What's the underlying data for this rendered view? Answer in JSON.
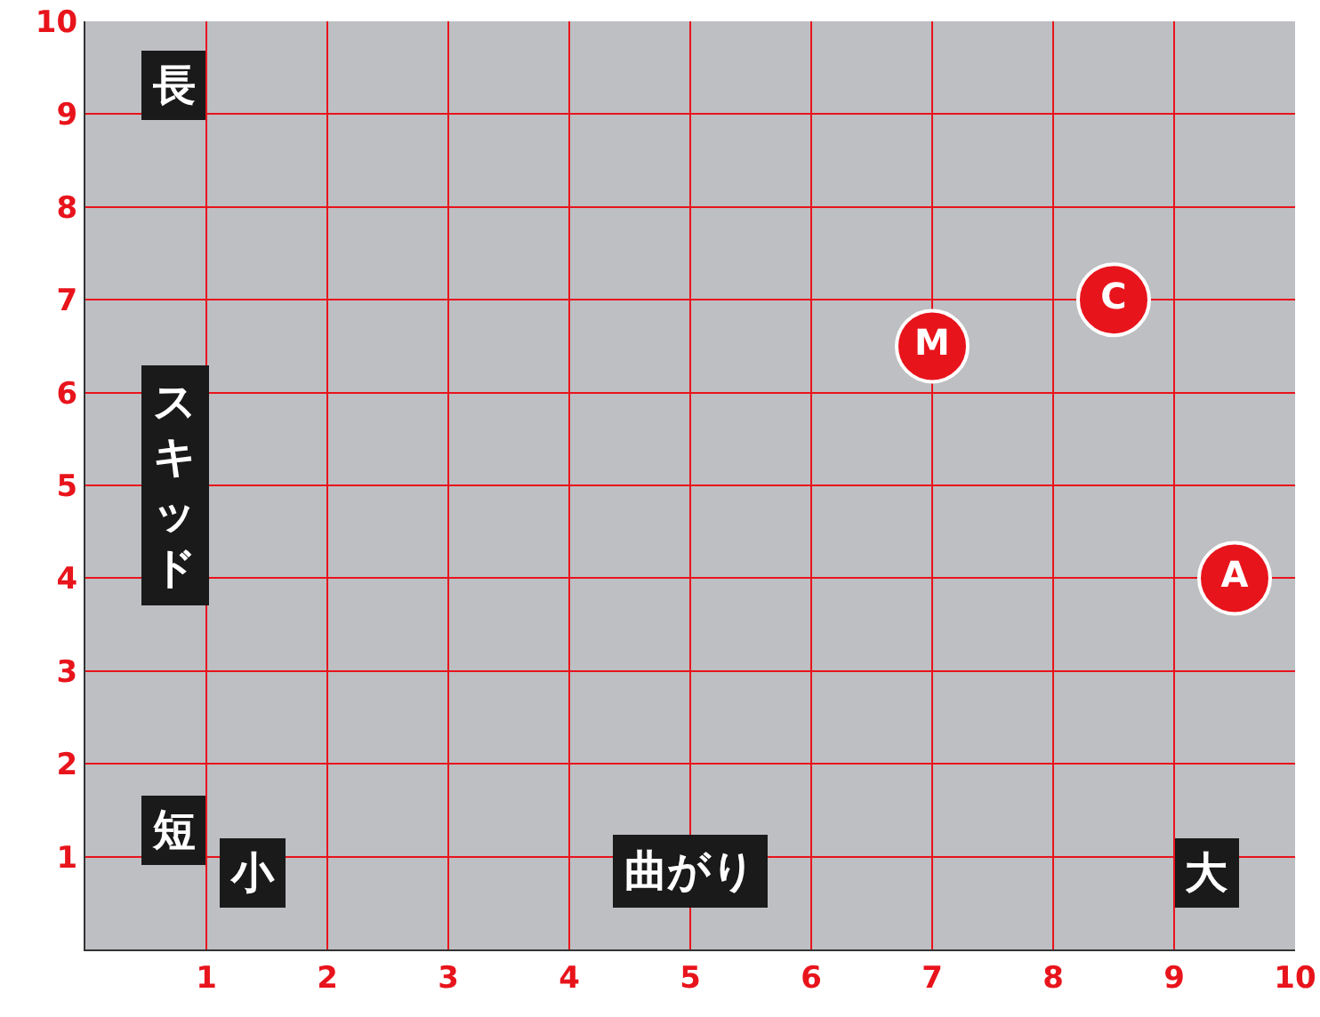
{
  "chart_data": {
    "type": "scatter",
    "xlabel": "曲がり",
    "ylabel": "スキッド",
    "annotations": [
      "長",
      "短",
      "小",
      "大"
    ],
    "series": [
      {
        "name": "M",
        "color": "#e8141c",
        "x": [
          7
        ],
        "values": [
          6.5
        ]
      },
      {
        "name": "C",
        "color": "#e8141c",
        "x": [
          8.5
        ],
        "values": [
          7
        ]
      },
      {
        "name": "A",
        "color": "#e8141c",
        "x": [
          9.5
        ],
        "values": [
          4
        ]
      }
    ],
    "xlim": [
      0,
      10
    ],
    "ylim": [
      0,
      10
    ],
    "xticks": [
      1,
      2,
      3,
      4,
      5,
      6,
      7,
      8,
      9,
      10
    ],
    "yticks": [
      1,
      2,
      3,
      4,
      5,
      6,
      7,
      8,
      9,
      10
    ],
    "grid": true,
    "legend": false,
    "marker": "circle"
  }
}
